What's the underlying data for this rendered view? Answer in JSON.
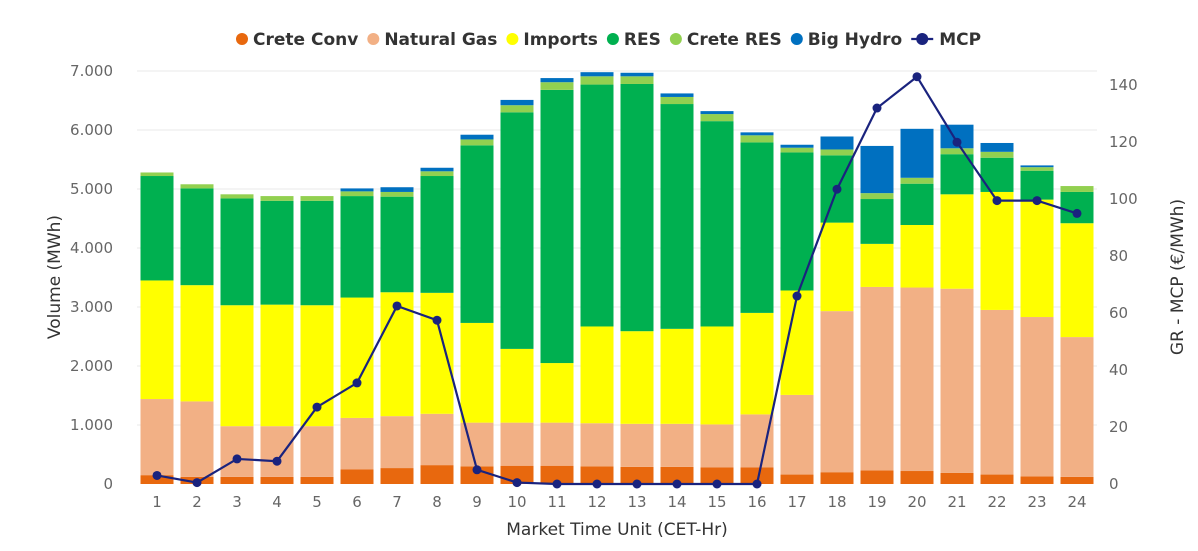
{
  "chart_data": {
    "type": "bar",
    "stacked": true,
    "categories": [
      "1",
      "2",
      "3",
      "4",
      "5",
      "6",
      "7",
      "8",
      "9",
      "10",
      "11",
      "12",
      "13",
      "14",
      "15",
      "16",
      "17",
      "18",
      "19",
      "20",
      "21",
      "22",
      "23",
      "24"
    ],
    "series": [
      {
        "name": "Crete Conv",
        "color": "#e8680e",
        "values": [
          150,
          120,
          120,
          120,
          120,
          250,
          270,
          320,
          300,
          310,
          310,
          300,
          290,
          290,
          280,
          280,
          160,
          200,
          230,
          220,
          190,
          160,
          130,
          120
        ]
      },
      {
        "name": "Natural Gas",
        "color": "#f2b085",
        "values": [
          1290,
          1280,
          860,
          860,
          860,
          870,
          880,
          870,
          740,
          730,
          730,
          730,
          730,
          730,
          730,
          900,
          1350,
          2730,
          3110,
          3110,
          3120,
          2790,
          2700,
          2370
        ]
      },
      {
        "name": "Imports",
        "color": "#ffff00",
        "values": [
          2010,
          1970,
          2050,
          2060,
          2050,
          2040,
          2100,
          2050,
          1690,
          1250,
          1010,
          1640,
          1570,
          1610,
          1660,
          1720,
          1770,
          1500,
          730,
          1060,
          1600,
          2000,
          1990,
          1930
        ]
      },
      {
        "name": "RES",
        "color": "#00b050",
        "values": [
          1770,
          1640,
          1810,
          1760,
          1770,
          1720,
          1620,
          1980,
          3010,
          4010,
          4630,
          4100,
          4190,
          3810,
          3480,
          2890,
          2340,
          1140,
          760,
          700,
          680,
          580,
          490,
          530
        ]
      },
      {
        "name": "Crete RES",
        "color": "#92d050",
        "values": [
          60,
          70,
          70,
          80,
          80,
          80,
          80,
          80,
          100,
          120,
          130,
          140,
          130,
          120,
          120,
          120,
          80,
          100,
          100,
          100,
          100,
          100,
          60,
          100
        ]
      },
      {
        "name": "Big Hydro",
        "color": "#0070c0",
        "values": [
          0,
          0,
          0,
          0,
          0,
          50,
          80,
          60,
          80,
          90,
          70,
          70,
          60,
          60,
          50,
          50,
          50,
          220,
          800,
          830,
          400,
          150,
          30,
          0
        ]
      }
    ],
    "line_series": {
      "name": "MCP",
      "color": "#1a237e",
      "values": [
        3,
        0.5,
        8.8,
        8,
        27,
        35.5,
        62.5,
        57.5,
        5,
        0.5,
        0,
        0,
        0,
        0,
        0,
        0,
        66,
        103.5,
        132,
        143,
        120,
        99.5,
        99.5,
        95
      ]
    },
    "y_left": {
      "label": "Volume (MWh)",
      "min": 0,
      "max": 7000,
      "ticks": [
        0,
        1000,
        2000,
        3000,
        4000,
        5000,
        6000,
        7000
      ],
      "tick_labels": [
        "0",
        "1.000",
        "2.000",
        "3.000",
        "4.000",
        "5.000",
        "6.000",
        "7.000"
      ]
    },
    "y_right": {
      "label": "GR - MCP (€/MWh)",
      "min": 0,
      "max": 145,
      "ticks": [
        0,
        20,
        40,
        60,
        80,
        100,
        120,
        140
      ],
      "tick_labels": [
        "0",
        "20",
        "40",
        "60",
        "80",
        "100",
        "120",
        "140"
      ]
    },
    "xlabel": "Market Time Unit (CET-Hr)",
    "grid": true,
    "legend_position": "top-center"
  }
}
